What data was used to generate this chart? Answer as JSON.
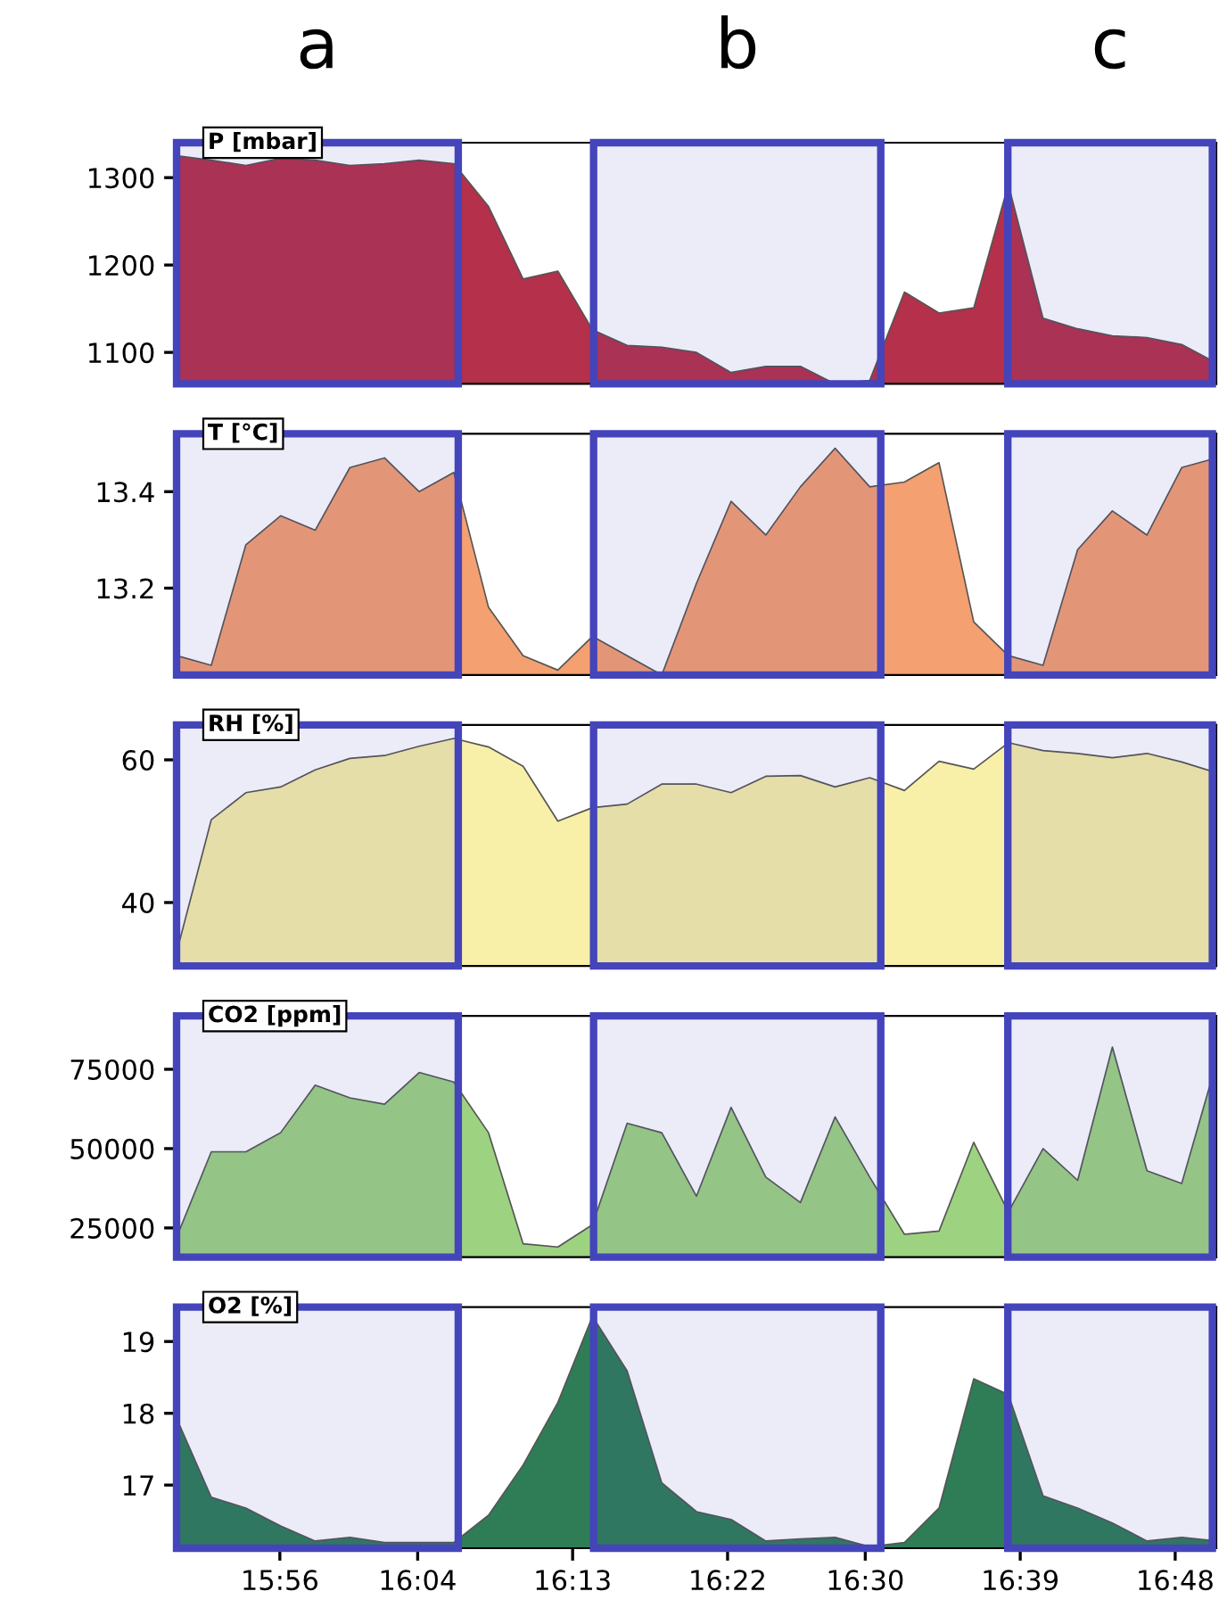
{
  "chart_data": [
    {
      "type": "area",
      "title": "P [mbar]",
      "color": "#b5304a",
      "tick_labels": "y",
      "x": [
        15.8333,
        15.8669,
        15.9004,
        15.934,
        15.9675,
        16.0011,
        16.0346,
        16.0682,
        16.1017,
        16.1353,
        16.1688,
        16.2024,
        16.2359,
        16.2695,
        16.303,
        16.3366,
        16.3701,
        16.4037,
        16.4372,
        16.4708,
        16.5043,
        16.5379,
        16.5714,
        16.605,
        16.6385,
        16.6721,
        16.7056,
        16.7392,
        16.7727,
        16.8063,
        16.8398
      ],
      "values": [
        1325,
        1320,
        1314,
        1322,
        1320,
        1314,
        1316,
        1320,
        1316,
        1267,
        1184,
        1193,
        1126,
        1108,
        1106,
        1100,
        1077,
        1084,
        1084,
        1064,
        1068,
        1169,
        1145,
        1151,
        1292,
        1139,
        1127,
        1119,
        1117,
        1109,
        1088
      ],
      "xlim": [
        15.8333,
        16.8398
      ],
      "ylim": [
        1064,
        1340
      ],
      "yticks": [
        1100,
        1200,
        1300
      ],
      "bands": [
        {
          "axis": "x",
          "from": 15.8333,
          "to": 16.106,
          "label": "a",
          "color": "#4444bb"
        },
        {
          "axis": "x",
          "from": 16.237,
          "to": 16.515,
          "label": "b",
          "color": "#4444bb"
        },
        {
          "axis": "x",
          "from": 16.638,
          "to": 16.836,
          "label": "c",
          "color": "#4444bb"
        }
      ]
    },
    {
      "type": "area",
      "title": "T [°C]",
      "color": "#f5a070",
      "tick_labels": "y",
      "x": [
        15.8333,
        15.8669,
        15.9004,
        15.934,
        15.9675,
        16.0011,
        16.0346,
        16.0682,
        16.1017,
        16.1353,
        16.1688,
        16.2024,
        16.2359,
        16.2695,
        16.303,
        16.3366,
        16.3701,
        16.4037,
        16.4372,
        16.4708,
        16.5043,
        16.5379,
        16.5714,
        16.605,
        16.6385,
        16.6721,
        16.7056,
        16.7392,
        16.7727,
        16.8063,
        16.8398
      ],
      "values": [
        13.06,
        13.04,
        13.29,
        13.35,
        13.32,
        13.45,
        13.47,
        13.4,
        13.44,
        13.16,
        13.06,
        13.03,
        13.1,
        13.06,
        13.02,
        13.21,
        13.38,
        13.31,
        13.41,
        13.49,
        13.41,
        13.42,
        13.46,
        13.13,
        13.06,
        13.04,
        13.28,
        13.36,
        13.31,
        13.45,
        13.47
      ],
      "xlim": [
        15.8333,
        16.8398
      ],
      "ylim": [
        13.02,
        13.52
      ],
      "yticks": [
        13.2,
        13.4
      ],
      "bands": [
        {
          "axis": "x",
          "from": 15.8333,
          "to": 16.106,
          "label": null,
          "color": "#4444bb"
        },
        {
          "axis": "x",
          "from": 16.237,
          "to": 16.515,
          "label": null,
          "color": "#4444bb"
        },
        {
          "axis": "x",
          "from": 16.638,
          "to": 16.836,
          "label": null,
          "color": "#4444bb"
        }
      ]
    },
    {
      "type": "area",
      "title": "RH [%]",
      "color": "#f8f0a8",
      "tick_labels": "y",
      "x": [
        15.8333,
        15.8669,
        15.9004,
        15.934,
        15.9675,
        16.0011,
        16.0346,
        16.0682,
        16.1017,
        16.1353,
        16.1688,
        16.2024,
        16.2359,
        16.2695,
        16.303,
        16.3366,
        16.3701,
        16.4037,
        16.4372,
        16.4708,
        16.5043,
        16.5379,
        16.5714,
        16.605,
        16.6385,
        16.6721,
        16.7056,
        16.7392,
        16.7727,
        16.8063,
        16.8398
      ],
      "values": [
        33,
        51.6,
        55.4,
        56.2,
        58.6,
        60.2,
        60.6,
        61.9,
        63.0,
        61.8,
        59.1,
        51.4,
        53.3,
        53.8,
        56.6,
        56.6,
        55.4,
        57.7,
        57.8,
        56.2,
        57.5,
        55.7,
        59.8,
        58.7,
        62.4,
        61.3,
        60.9,
        60.3,
        60.9,
        59.7,
        58.2
      ],
      "xlim": [
        15.8333,
        16.8398
      ],
      "ylim": [
        31.1,
        64.9
      ],
      "yticks": [
        40,
        60
      ],
      "bands": [
        {
          "axis": "x",
          "from": 15.8333,
          "to": 16.106,
          "label": null,
          "color": "#4444bb"
        },
        {
          "axis": "x",
          "from": 16.237,
          "to": 16.515,
          "label": null,
          "color": "#4444bb"
        },
        {
          "axis": "x",
          "from": 16.638,
          "to": 16.836,
          "label": null,
          "color": "#4444bb"
        }
      ]
    },
    {
      "type": "area",
      "title": "CO2 [ppm]",
      "color": "#9dd380",
      "tick_labels": "y",
      "x": [
        15.8333,
        15.8669,
        15.9004,
        15.934,
        15.9675,
        16.0011,
        16.0346,
        16.0682,
        16.1017,
        16.1353,
        16.1688,
        16.2024,
        16.2359,
        16.2695,
        16.303,
        16.3366,
        16.3701,
        16.4037,
        16.4372,
        16.4708,
        16.5043,
        16.5379,
        16.5714,
        16.605,
        16.6385,
        16.6721,
        16.7056,
        16.7392,
        16.7727,
        16.8063,
        16.8398
      ],
      "values": [
        22000,
        49000,
        49000,
        55000,
        70000,
        66000,
        64000,
        74000,
        71000,
        55000,
        20000,
        19000,
        26000,
        58000,
        55000,
        35000,
        63000,
        41000,
        33000,
        60000,
        41000,
        23000,
        24000,
        52000,
        30000,
        50000,
        40000,
        82000,
        43000,
        39000,
        77000
      ],
      "xlim": [
        15.8333,
        16.8398
      ],
      "ylim": [
        15800,
        91800
      ],
      "yticks": [
        25000,
        50000,
        75000
      ],
      "bands": [
        {
          "axis": "x",
          "from": 15.8333,
          "to": 16.106,
          "label": null,
          "color": "#4444bb"
        },
        {
          "axis": "x",
          "from": 16.237,
          "to": 16.515,
          "label": null,
          "color": "#4444bb"
        },
        {
          "axis": "x",
          "from": 16.638,
          "to": 16.836,
          "label": null,
          "color": "#4444bb"
        }
      ]
    },
    {
      "type": "area",
      "title": "O2 [%]",
      "color": "#2e7d57",
      "x": [
        15.8333,
        15.8669,
        15.9004,
        15.934,
        15.9675,
        16.0011,
        16.0346,
        16.0682,
        16.1017,
        16.1353,
        16.1688,
        16.2024,
        16.2359,
        16.2695,
        16.303,
        16.3366,
        16.3701,
        16.4037,
        16.4372,
        16.4708,
        16.5043,
        16.5379,
        16.5714,
        16.605,
        16.6385,
        16.6721,
        16.7056,
        16.7392,
        16.7727,
        16.8063,
        16.8398
      ],
      "values": [
        17.93,
        16.83,
        16.68,
        16.43,
        16.22,
        16.27,
        16.2,
        16.2,
        16.2,
        16.58,
        17.28,
        18.15,
        19.35,
        18.59,
        17.03,
        16.63,
        16.52,
        16.22,
        16.25,
        16.27,
        16.14,
        16.2,
        16.68,
        18.48,
        18.26,
        16.85,
        16.68,
        16.47,
        16.22,
        16.27,
        16.22
      ],
      "xlim": [
        15.8333,
        16.8398
      ],
      "ylim": [
        16.12,
        19.48
      ],
      "yticks": [
        17,
        18,
        19
      ],
      "xticks": [
        {
          "value": 15.9333,
          "label": "15:56"
        },
        {
          "value": 16.0667,
          "label": "16:04"
        },
        {
          "value": 16.2167,
          "label": "16:13"
        },
        {
          "value": 16.3667,
          "label": "16:22"
        },
        {
          "value": 16.5,
          "label": "16:30"
        },
        {
          "value": 16.65,
          "label": "16:39"
        },
        {
          "value": 16.8,
          "label": "16:48"
        }
      ],
      "bands": [
        {
          "axis": "x",
          "from": 15.8333,
          "to": 16.106,
          "label": null,
          "color": "#4444bb"
        },
        {
          "axis": "x",
          "from": 16.237,
          "to": 16.515,
          "label": null,
          "color": "#4444bb"
        },
        {
          "axis": "x",
          "from": 16.638,
          "to": 16.836,
          "label": null,
          "color": "#4444bb"
        }
      ]
    }
  ]
}
